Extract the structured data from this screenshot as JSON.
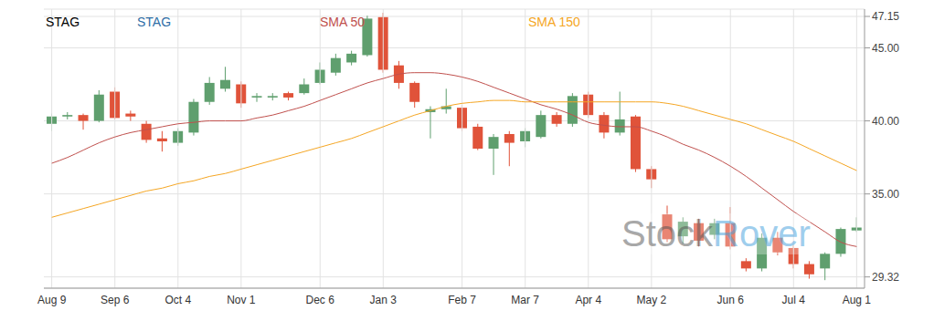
{
  "chart_data": {
    "type": "candlestick",
    "title": "STAG",
    "categories": [
      "Aug 9",
      null,
      null,
      null,
      "Sep 6",
      null,
      null,
      null,
      "Oct 4",
      null,
      null,
      null,
      "Nov 1",
      null,
      null,
      null,
      null,
      "Dec 6",
      null,
      null,
      null,
      "Jan 3",
      null,
      null,
      null,
      null,
      "Feb 7",
      null,
      null,
      null,
      "Mar 7",
      null,
      null,
      null,
      "Apr 4",
      null,
      null,
      null,
      "May 2",
      null,
      null,
      null,
      null,
      "Jun 6",
      null,
      null,
      null,
      "Jul 4",
      null,
      null,
      null,
      "Aug 1"
    ],
    "series": [
      {
        "name": "STAG",
        "type": "candlestick",
        "color": "#2f6ea6",
        "open": [
          39.8,
          40.3,
          40.4,
          40.0,
          42.0,
          40.5,
          39.8,
          38.8,
          38.5,
          39.2,
          41.3,
          42.2,
          42.5,
          41.6,
          41.6,
          41.9,
          41.9,
          42.6,
          43.3,
          44.0,
          44.5,
          47.1,
          43.8,
          42.6,
          40.6,
          40.8,
          40.9,
          39.6,
          38.1,
          39.1,
          38.6,
          38.9,
          40.4,
          39.8,
          41.8,
          40.4,
          39.2,
          40.3,
          36.7,
          33.6,
          32.1,
          33.0,
          32.2,
          33.0,
          30.4,
          29.9,
          32.0,
          31.3,
          30.2,
          29.9,
          30.9,
          32.5
        ],
        "high": [
          40.5,
          40.6,
          40.5,
          42.1,
          42.3,
          40.7,
          40.0,
          39.3,
          39.5,
          41.5,
          43.0,
          43.7,
          42.7,
          41.9,
          41.9,
          42.0,
          42.9,
          44.0,
          44.6,
          44.8,
          47.2,
          47.4,
          44.1,
          42.7,
          41.0,
          42.2,
          41.1,
          39.8,
          39.1,
          39.3,
          39.5,
          40.7,
          40.6,
          41.9,
          42.0,
          40.6,
          42.0,
          40.4,
          36.9,
          34.2,
          33.4,
          33.3,
          33.3,
          34.1,
          30.6,
          32.3,
          32.4,
          31.5,
          30.4,
          31.0,
          32.7,
          33.4
        ],
        "low": [
          39.3,
          40.1,
          39.4,
          39.9,
          40.1,
          40.0,
          38.5,
          37.9,
          38.3,
          39.0,
          41.1,
          42.0,
          40.9,
          41.3,
          41.4,
          41.4,
          41.8,
          42.5,
          43.1,
          43.8,
          44.4,
          43.3,
          42.2,
          40.9,
          38.8,
          40.5,
          39.3,
          38.0,
          36.3,
          36.9,
          38.2,
          38.8,
          39.6,
          39.6,
          40.2,
          38.8,
          39.0,
          36.5,
          35.4,
          31.7,
          31.6,
          31.4,
          31.9,
          31.2,
          29.7,
          29.7,
          30.8,
          29.9,
          29.2,
          29.1,
          30.7,
          32.4
        ],
        "close": [
          40.3,
          40.4,
          40.0,
          41.8,
          40.2,
          40.3,
          38.7,
          38.6,
          39.3,
          41.3,
          42.6,
          42.8,
          41.2,
          41.7,
          41.7,
          41.6,
          42.5,
          43.5,
          44.3,
          44.6,
          47.0,
          43.5,
          42.6,
          41.3,
          40.8,
          41.0,
          39.5,
          38.1,
          38.9,
          38.5,
          39.3,
          40.4,
          39.8,
          41.7,
          40.4,
          39.2,
          40.1,
          36.7,
          36.0,
          31.9,
          33.1,
          31.8,
          33.0,
          31.4,
          29.9,
          32.0,
          31.0,
          30.2,
          29.5,
          30.9,
          32.6,
          32.7
        ]
      },
      {
        "name": "SMA 50",
        "type": "line",
        "color": "#c0504d",
        "values": [
          37.1,
          37.5,
          38.0,
          38.5,
          38.9,
          39.2,
          39.4,
          39.6,
          39.8,
          39.9,
          40.0,
          40.0,
          40.0,
          40.2,
          40.4,
          40.7,
          41.0,
          41.4,
          41.8,
          42.2,
          42.6,
          42.9,
          43.2,
          43.3,
          43.3,
          43.2,
          43.0,
          42.7,
          42.3,
          41.9,
          41.5,
          41.1,
          40.8,
          40.4,
          39.9,
          39.7,
          39.6,
          39.6,
          39.3,
          38.9,
          38.4,
          38.0,
          37.5,
          36.9,
          36.2,
          35.4,
          34.6,
          33.8,
          33.1,
          32.4,
          31.7,
          31.4
        ]
      },
      {
        "name": "SMA 150",
        "type": "line",
        "color": "#f5a623",
        "values": [
          33.4,
          33.7,
          34.0,
          34.3,
          34.6,
          34.9,
          35.2,
          35.4,
          35.7,
          35.9,
          36.2,
          36.4,
          36.7,
          37.0,
          37.3,
          37.6,
          37.9,
          38.2,
          38.5,
          38.8,
          39.2,
          39.6,
          40.0,
          40.4,
          40.7,
          41.0,
          41.2,
          41.3,
          41.4,
          41.4,
          41.3,
          41.3,
          41.3,
          41.3,
          41.3,
          41.3,
          41.3,
          41.3,
          41.3,
          41.2,
          41.0,
          40.7,
          40.4,
          40.1,
          39.8,
          39.4,
          39.0,
          38.6,
          38.1,
          37.6,
          37.1,
          36.6
        ]
      }
    ],
    "ylim": [
      28.55,
      47.65
    ],
    "yticks": [
      29.32,
      {
        "value": 35,
        "label": "35.00"
      },
      {
        "value": 40,
        "label": "40.00"
      },
      {
        "value": 45,
        "label": "45.00"
      },
      47.15
    ],
    "grid": true,
    "annotations": [
      "Stock",
      "Rover"
    ]
  }
}
